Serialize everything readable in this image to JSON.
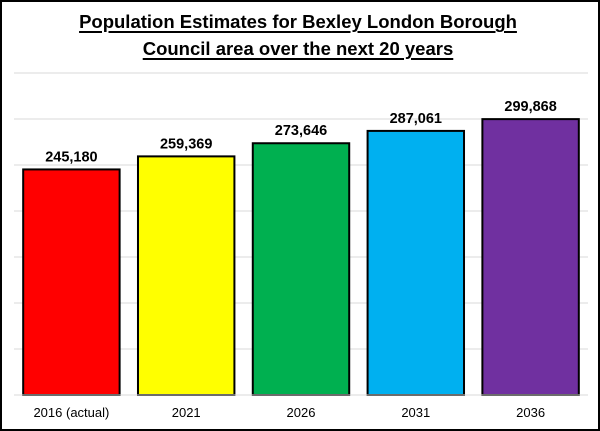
{
  "chart_data": {
    "type": "bar",
    "title_line1": "Population Estimates for Bexley London Borough",
    "title_line2": "Council area over the next 20 years",
    "categories": [
      "2016 (actual)",
      "2021",
      "2026",
      "2031",
      "2036"
    ],
    "values": [
      245180,
      259369,
      273646,
      287061,
      299868
    ],
    "data_labels": [
      "245,180",
      "259,369",
      "273,646",
      "287,061",
      "299,868"
    ],
    "bar_colors": [
      "#ff0000",
      "#ffff00",
      "#00b050",
      "#00b0f0",
      "#7030a0"
    ],
    "ylim": [
      0,
      350000
    ],
    "grid": true,
    "gridline_step": 50000,
    "xlabel": "",
    "ylabel": ""
  }
}
